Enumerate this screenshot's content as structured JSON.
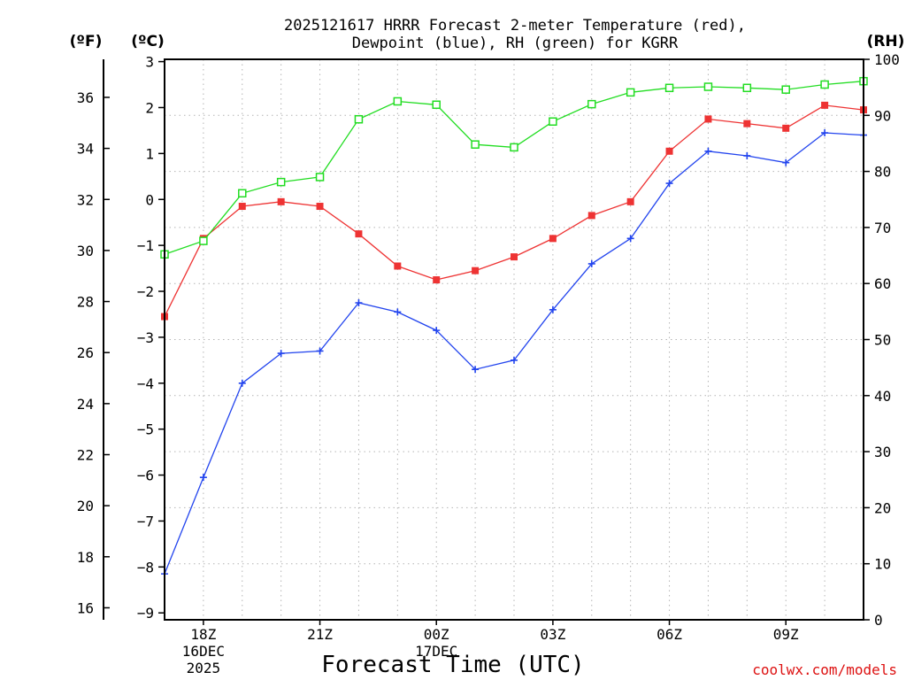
{
  "chart_data": {
    "type": "line",
    "title_lines": [
      "2025121617 HRRR Forecast 2-meter Temperature (red),",
      "Dewpoint (blue), RH (green) for KGRR"
    ],
    "xlabel": "Forecast Time (UTC)",
    "credit": "coolwx.com/models",
    "units": {
      "fahrenheit": "(ºF)",
      "celsius": "(ºC)",
      "rh": "(RH)"
    },
    "x_range": [
      17,
      35
    ],
    "x_ticks": [
      {
        "hour": 18,
        "lines": [
          "18Z",
          "16DEC",
          "2025"
        ]
      },
      {
        "hour": 21,
        "lines": [
          "21Z"
        ]
      },
      {
        "hour": 24,
        "lines": [
          "00Z",
          "17DEC"
        ]
      },
      {
        "hour": 27,
        "lines": [
          "03Z"
        ]
      },
      {
        "hour": 30,
        "lines": [
          "06Z"
        ]
      },
      {
        "hour": 33,
        "lines": [
          "09Z"
        ]
      }
    ],
    "celsius_range": [
      -9.15,
      3.05
    ],
    "celsius_ticks": [
      "3",
      "2",
      "1",
      "0",
      "−1",
      "−2",
      "−3",
      "−4",
      "−5",
      "−6",
      "−7",
      "−8",
      "−9"
    ],
    "fahrenheit_ticks": [
      "36",
      "34",
      "32",
      "30",
      "28",
      "26",
      "24",
      "22",
      "20",
      "18",
      "16"
    ],
    "rh_range": [
      0,
      100
    ],
    "rh_ticks": [
      "100",
      "90",
      "80",
      "70",
      "60",
      "50",
      "40",
      "30",
      "20",
      "10",
      "0"
    ],
    "colors": {
      "temperature": "#ee3333",
      "dewpoint": "#2244ee",
      "rh": "#22dd22",
      "credit": "#dd1111"
    },
    "series": [
      {
        "name": "Temperature (red)",
        "unit": "C",
        "marker": "filled-square",
        "x": [
          17,
          18,
          19,
          20,
          21,
          22,
          23,
          24,
          25,
          26,
          27,
          28,
          29,
          30,
          31,
          32,
          33,
          34,
          35
        ],
        "values": [
          -2.55,
          -0.85,
          -0.15,
          -0.05,
          -0.15,
          -0.75,
          -1.45,
          -1.75,
          -1.55,
          -1.25,
          -0.85,
          -0.35,
          -0.05,
          1.05,
          1.75,
          1.65,
          1.55,
          2.05,
          1.95
        ]
      },
      {
        "name": "Dewpoint (blue)",
        "unit": "C",
        "marker": "plus",
        "x": [
          17,
          18,
          19,
          20,
          21,
          22,
          23,
          24,
          25,
          26,
          27,
          28,
          29,
          30,
          31,
          32,
          33,
          34,
          35
        ],
        "values": [
          -8.15,
          -6.05,
          -4.0,
          -3.35,
          -3.3,
          -2.25,
          -2.45,
          -2.85,
          -3.7,
          -3.5,
          -2.4,
          -1.4,
          -0.85,
          0.35,
          1.05,
          0.95,
          0.8,
          1.45,
          1.4
        ]
      },
      {
        "name": "RH (green)",
        "unit": "%",
        "marker": "open-square",
        "x": [
          17,
          18,
          19,
          20,
          21,
          22,
          23,
          24,
          25,
          26,
          27,
          28,
          29,
          30,
          31,
          32,
          33,
          34,
          35
        ],
        "values": [
          65.2,
          67.6,
          76.1,
          78.1,
          79.0,
          89.3,
          92.5,
          91.9,
          84.8,
          84.3,
          88.9,
          92.0,
          94.1,
          94.9,
          95.1,
          94.9,
          94.6,
          95.5,
          96.1
        ]
      }
    ]
  }
}
